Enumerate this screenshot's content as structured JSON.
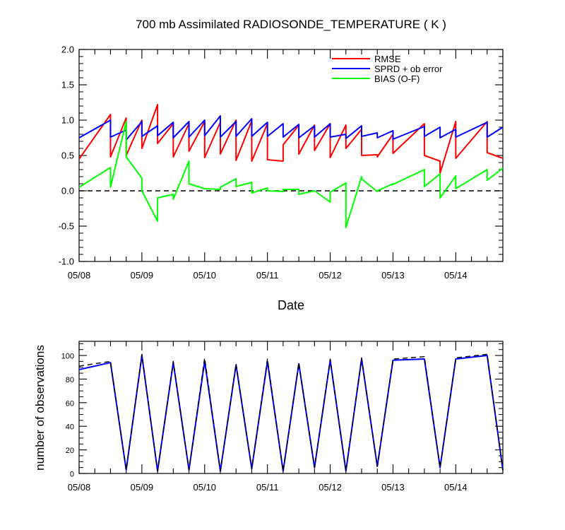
{
  "chart_data": [
    {
      "type": "line",
      "title": "700 mb Assimilated RADIOSONDE_TEMPERATURE ( K )",
      "xlabel": "Date",
      "ylabel": "",
      "xlim": [
        0,
        6.75
      ],
      "ylim": [
        -1.0,
        2.0
      ],
      "x_tick_labels": [
        "05/08",
        "05/09",
        "05/10",
        "05/11",
        "05/12",
        "05/13",
        "05/14"
      ],
      "y_tick_labels": [
        "-1.0",
        "-0.5",
        "0.0",
        "0.5",
        "1.0",
        "1.5",
        "2.0"
      ],
      "legend_position": "top-right",
      "reference_line": {
        "y": 0.0,
        "style": "dashed",
        "color": "#000000"
      },
      "series": [
        {
          "name": "RMSE",
          "color": "#ff0000",
          "x": [
            0.0,
            0.5,
            0.5,
            0.75,
            0.75,
            1.0,
            1.0,
            1.25,
            1.25,
            1.5,
            1.5,
            1.75,
            1.75,
            2.0,
            2.0,
            2.25,
            2.25,
            2.5,
            2.5,
            2.75,
            2.75,
            3.0,
            3.0,
            3.25,
            3.25,
            3.5,
            3.5,
            3.75,
            3.75,
            4.0,
            4.0,
            4.25,
            4.25,
            4.5,
            4.5,
            4.75,
            4.75,
            5.0,
            5.0,
            5.5,
            5.5,
            5.75,
            5.75,
            6.0,
            6.0,
            6.5,
            6.5,
            6.75
          ],
          "y": [
            0.45,
            1.08,
            0.48,
            1.03,
            0.5,
            1.0,
            0.6,
            1.22,
            0.67,
            0.95,
            0.48,
            0.95,
            0.56,
            0.98,
            0.47,
            0.97,
            0.52,
            1.0,
            0.43,
            0.99,
            0.42,
            0.95,
            0.44,
            0.42,
            0.65,
            0.93,
            0.52,
            0.93,
            0.57,
            0.95,
            0.47,
            0.93,
            0.6,
            0.87,
            0.5,
            0.51,
            0.48,
            0.8,
            0.53,
            0.95,
            0.5,
            0.42,
            0.25,
            0.98,
            0.46,
            0.98,
            0.54,
            0.46
          ]
        },
        {
          "name": "SPRD + ob error",
          "color": "#0000ff",
          "x": [
            0.0,
            0.5,
            0.5,
            0.75,
            0.75,
            1.0,
            1.0,
            1.25,
            1.25,
            1.5,
            1.5,
            1.75,
            1.75,
            2.0,
            2.0,
            2.25,
            2.25,
            2.5,
            2.5,
            2.75,
            2.75,
            3.0,
            3.0,
            3.25,
            3.25,
            3.5,
            3.5,
            3.75,
            3.75,
            4.0,
            4.0,
            4.25,
            4.25,
            4.5,
            4.5,
            4.75,
            4.75,
            5.0,
            5.0,
            5.5,
            5.5,
            5.75,
            5.75,
            6.0,
            6.0,
            6.5,
            6.5,
            6.75
          ],
          "y": [
            0.75,
            1.0,
            0.76,
            0.86,
            0.72,
            0.98,
            0.77,
            0.92,
            0.78,
            0.97,
            0.75,
            0.98,
            0.76,
            1.0,
            0.78,
            1.06,
            0.76,
            0.98,
            0.77,
            1.02,
            0.77,
            0.97,
            0.77,
            0.95,
            0.76,
            0.94,
            0.75,
            0.92,
            0.76,
            0.95,
            0.76,
            0.8,
            0.74,
            0.92,
            0.77,
            0.82,
            0.75,
            0.85,
            0.73,
            0.91,
            0.77,
            0.9,
            0.75,
            0.87,
            0.76,
            0.97,
            0.76,
            0.9
          ]
        },
        {
          "name": "BIAS (O-F)",
          "color": "#00ff00",
          "x": [
            0.0,
            0.5,
            0.5,
            0.75,
            0.75,
            1.0,
            1.0,
            1.25,
            1.25,
            1.5,
            1.5,
            1.75,
            1.75,
            2.0,
            2.0,
            2.25,
            2.25,
            2.5,
            2.5,
            2.75,
            2.75,
            3.0,
            3.0,
            3.25,
            3.25,
            3.5,
            3.5,
            3.75,
            3.75,
            4.0,
            4.0,
            4.25,
            4.25,
            4.5,
            4.5,
            4.75,
            4.75,
            5.0,
            5.0,
            5.5,
            5.5,
            5.75,
            5.75,
            6.0,
            6.0,
            6.5,
            6.5,
            6.75
          ],
          "y": [
            0.05,
            0.33,
            0.05,
            0.98,
            0.48,
            0.18,
            0.0,
            -0.43,
            -0.1,
            -0.05,
            -0.12,
            0.42,
            0.1,
            0.03,
            0.03,
            0.02,
            0.05,
            0.17,
            0.06,
            0.12,
            -0.03,
            0.04,
            0.0,
            -0.01,
            0.02,
            0.02,
            -0.05,
            0.0,
            0.0,
            -0.16,
            -0.02,
            0.11,
            -0.52,
            0.2,
            0.17,
            -0.01,
            0.0,
            0.1,
            0.09,
            0.3,
            0.06,
            0.24,
            -0.1,
            0.21,
            0.03,
            0.3,
            0.15,
            0.32
          ]
        }
      ]
    },
    {
      "type": "line",
      "title": "",
      "xlabel": "",
      "ylabel": "number of observations",
      "xlim": [
        0,
        6.75
      ],
      "ylim": [
        0,
        112
      ],
      "x_tick_labels": [
        "05/08",
        "05/09",
        "05/10",
        "05/11",
        "05/12",
        "05/13",
        "05/14"
      ],
      "y_tick_labels": [
        "0",
        "20",
        "40",
        "60",
        "80",
        "100"
      ],
      "series": [
        {
          "color": "#0000ff",
          "style": "solid",
          "x": [
            0.0,
            0.5,
            0.75,
            1.0,
            1.25,
            1.5,
            1.75,
            2.0,
            2.25,
            2.5,
            2.75,
            3.0,
            3.25,
            3.5,
            3.75,
            4.0,
            4.25,
            4.5,
            4.75,
            5.0,
            5.5,
            5.75,
            6.0,
            6.5,
            6.75
          ],
          "y": [
            88,
            94,
            3,
            100,
            2,
            94,
            3,
            95,
            2,
            92,
            4,
            95,
            2,
            93,
            5,
            96,
            2,
            97,
            6,
            96,
            97,
            5,
            97,
            100,
            3
          ]
        },
        {
          "color": "#000000",
          "style": "dashed",
          "x": [
            0.0,
            0.5,
            0.75,
            1.0,
            1.25,
            1.5,
            1.75,
            2.0,
            2.25,
            2.5,
            2.75,
            3.0,
            3.25,
            3.5,
            3.75,
            4.0,
            4.25,
            4.5,
            4.75,
            5.0,
            5.5,
            5.75,
            6.0,
            6.5,
            6.75
          ],
          "y": [
            91,
            95,
            3,
            101,
            2,
            95,
            3,
            98,
            2,
            93,
            4,
            97,
            2,
            94,
            5,
            97,
            2,
            98,
            6,
            97,
            99,
            5,
            98,
            101,
            3
          ]
        }
      ]
    }
  ]
}
